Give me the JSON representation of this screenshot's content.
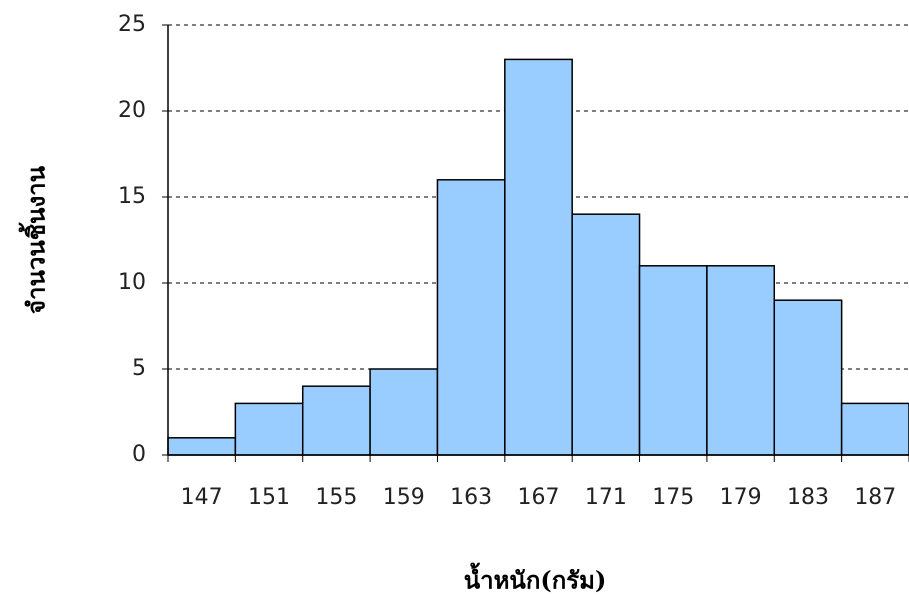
{
  "chart_data": {
    "type": "bar",
    "x_label": "น้ำหนัก(กรัม)",
    "y_label": "จำนวนชิ้นงาน",
    "categories": [
      "147",
      "151",
      "155",
      "159",
      "163",
      "167",
      "171",
      "175",
      "179",
      "183",
      "187"
    ],
    "values": [
      1,
      3,
      4,
      5,
      16,
      23,
      14,
      11,
      11,
      9,
      3
    ],
    "color": "#99ccff",
    "ylim": [
      0,
      25
    ],
    "yticks": [
      0,
      5,
      10,
      15,
      20,
      25
    ],
    "grid": true
  }
}
